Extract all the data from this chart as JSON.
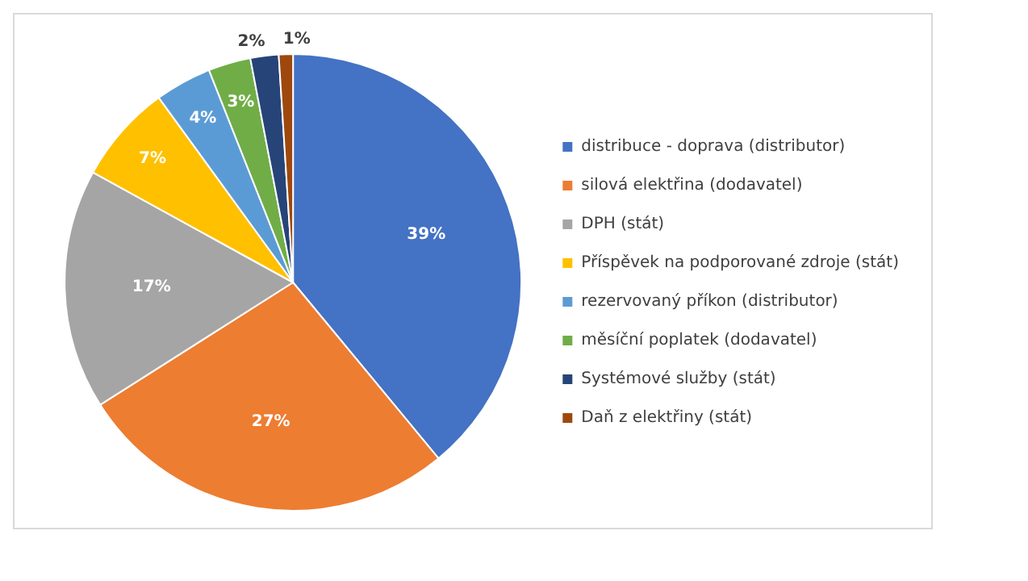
{
  "chart_data": {
    "type": "pie",
    "categories": [
      "distribuce - doprava (distributor)",
      "silová elektřina (dodavatel)",
      "DPH (stát)",
      "Příspěvek na podporované zdroje (stát)",
      "rezervovaný příkon (distributor)",
      "měsíční poplatek (dodavatel)",
      "Systémové služby (stát)",
      "Daň z elektřiny (stát)"
    ],
    "values": [
      39,
      27,
      17,
      7,
      4,
      3,
      2,
      1
    ],
    "colors": [
      "#4472c4",
      "#ed7d31",
      "#a5a5a5",
      "#ffc000",
      "#5b9bd5",
      "#70ad47",
      "#264478",
      "#9e480e"
    ],
    "value_labels": [
      "39%",
      "27%",
      "17%",
      "7%",
      "4%",
      "3%",
      "2%",
      "1%"
    ],
    "legend": "right"
  }
}
